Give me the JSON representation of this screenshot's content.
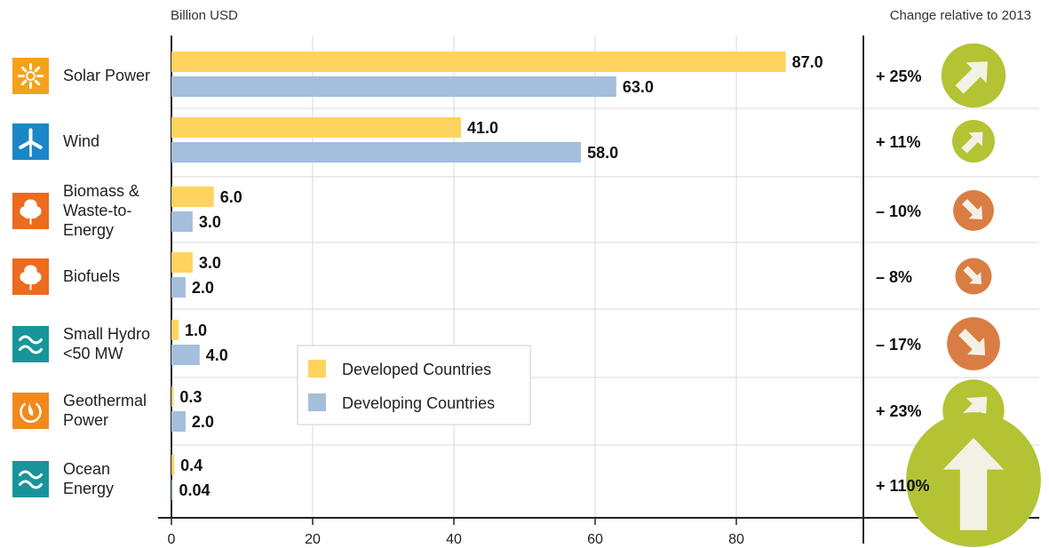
{
  "chart_data": {
    "type": "bar",
    "orientation": "horizontal",
    "xlabel": "Billion USD",
    "change_title": "Change relative to 2013",
    "xlim": [
      0,
      100
    ],
    "xticks": [
      0,
      20,
      40,
      60,
      80
    ],
    "grid": true,
    "legend_placement": "center",
    "categories": [
      {
        "lines": [
          "Solar Power"
        ],
        "icon": "sun-icon",
        "icon_color": "#f5a21b"
      },
      {
        "lines": [
          "Wind"
        ],
        "icon": "wind-turbine-icon",
        "icon_color": "#1b86c8"
      },
      {
        "lines": [
          "Biomass &",
          "Waste-to-",
          "Energy"
        ],
        "icon": "leaf-icon",
        "icon_color": "#ec6b1f"
      },
      {
        "lines": [
          "Biofuels"
        ],
        "icon": "leaf-icon",
        "icon_color": "#ec6b1f"
      },
      {
        "lines": [
          "Small Hydro",
          "<50 MW"
        ],
        "icon": "waves-icon",
        "icon_color": "#17959a"
      },
      {
        "lines": [
          "Geothermal",
          "Power"
        ],
        "icon": "geothermal-icon",
        "icon_color": "#f08a1c"
      },
      {
        "lines": [
          "Ocean",
          "Energy"
        ],
        "icon": "waves-icon",
        "icon_color": "#17959a"
      }
    ],
    "series": [
      {
        "name": "Developed Countries",
        "color": "#fed35e",
        "values": [
          87.0,
          41.0,
          6.0,
          3.0,
          1.0,
          0.3,
          0.4
        ],
        "labels": [
          "87.0",
          "41.0",
          "6.0",
          "3.0",
          "1.0",
          "0.3",
          "0.4"
        ]
      },
      {
        "name": "Developing Countries",
        "color": "#a3bfdb",
        "values": [
          63.0,
          58.0,
          3.0,
          2.0,
          4.0,
          2.0,
          0.04
        ],
        "labels": [
          "63.0",
          "58.0",
          "3.0",
          "2.0",
          "4.0",
          "2.0",
          "0.04"
        ]
      }
    ],
    "change": [
      {
        "label": "+ 25%",
        "value": 25,
        "direction": "up"
      },
      {
        "label": "+ 11%",
        "value": 11,
        "direction": "up"
      },
      {
        "label": "– 10%",
        "value": -10,
        "direction": "down"
      },
      {
        "label": "– 8%",
        "value": -8,
        "direction": "down"
      },
      {
        "label": "– 17%",
        "value": -17,
        "direction": "down"
      },
      {
        "label": "+ 23%",
        "value": 23,
        "direction": "up"
      },
      {
        "label": "+ 110%",
        "value": 110,
        "direction": "up"
      }
    ],
    "change_colors": {
      "up": "#b3c334",
      "down": "#d97d43"
    }
  }
}
